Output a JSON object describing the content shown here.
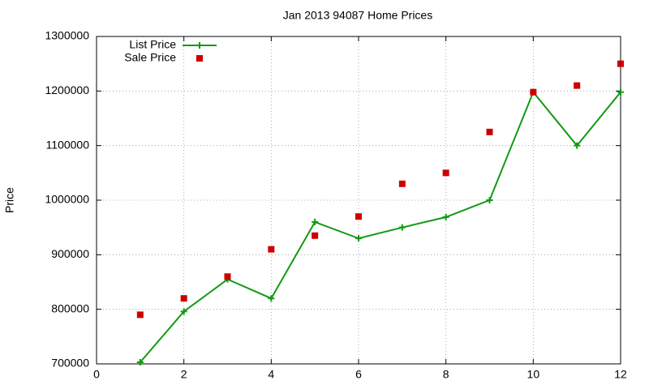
{
  "chart_data": {
    "type": "line",
    "title": "Jan 2013 94087 Home Prices",
    "y_label": "Price",
    "x": [
      1,
      2,
      3,
      4,
      5,
      6,
      7,
      8,
      9,
      10,
      11,
      12
    ],
    "series": [
      {
        "name": "List Price",
        "color": "#119911",
        "style": "linespoints",
        "values": [
          703000,
          796000,
          855000,
          820000,
          960000,
          930000,
          950000,
          969000,
          1000000,
          1198000,
          1100000,
          1198000
        ]
      },
      {
        "name": "Sale Price",
        "color": "#cc0000",
        "style": "points",
        "values": [
          790000,
          820000,
          860000,
          910000,
          935000,
          970000,
          1030000,
          1050000,
          1125000,
          1198000,
          1210000,
          1250000
        ]
      }
    ],
    "xlim": [
      0,
      12
    ],
    "xticks": [
      0,
      2,
      4,
      6,
      8,
      10,
      12
    ],
    "ylim": [
      700000,
      1300000
    ],
    "yticks": [
      700000,
      800000,
      900000,
      1000000,
      1100000,
      1200000,
      1300000
    ],
    "grid": true,
    "legend_position": "top-left"
  }
}
